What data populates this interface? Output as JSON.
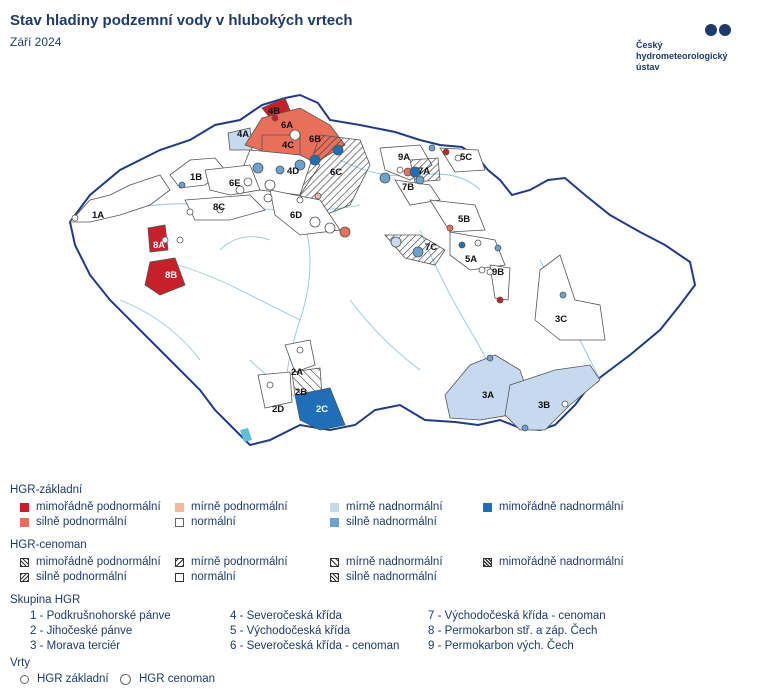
{
  "title": "Stav hladiny podzemní vody v hlubokých vrtech",
  "subtitle": "Září 2024",
  "logo": {
    "lines": [
      "Český",
      "hydrometeorologický",
      "ústav"
    ]
  },
  "colors": {
    "mimoradne_podnormalni": "#c8202a",
    "silne_podnormalni": "#e8705a",
    "mirne_podnormalni": "#f4b79c",
    "normalni": "#ffffff",
    "mirne_nadnormalni": "#c6d9ee",
    "silne_nadnormalni": "#6aa2d2",
    "mimoradne_nadnormalni": "#1f6fb8",
    "border": "#1f3b8c",
    "river": "#8ec8e6",
    "lake": "#5fbfd6"
  },
  "map_labels": [
    "1A",
    "1B",
    "2A",
    "2B",
    "2C",
    "2D",
    "3A",
    "3B",
    "3C",
    "4A",
    "4B",
    "4C",
    "4D",
    "5A",
    "5B",
    "5C",
    "6A",
    "6B",
    "6C",
    "6D",
    "6E",
    "7A",
    "7B",
    "7C",
    "8A",
    "8B",
    "8C",
    "9A",
    "9B"
  ],
  "legend": {
    "zakladni": {
      "heading": "HGR-základní",
      "items": [
        "mimořádně podnormální",
        "mírně podnormální",
        "mírně nadnormální",
        "mimořádně nadnormální",
        "silně podnormální",
        "normální",
        "silně nadnormální"
      ]
    },
    "cenoman": {
      "heading": "HGR-cenoman",
      "items": [
        "mimořádně podnormální",
        "mírně podnormální",
        "mírně nadnormální",
        "mimořádně nadnormální",
        "silně podnormální",
        "normální",
        "silně nadnormální"
      ]
    },
    "skupina": {
      "heading": "Skupina HGR",
      "items": [
        "1 - Podkrušnohorské pánve",
        "4 - Severočeská křída",
        "7 - Východočeská křída - cenoman",
        "2 - Jihočeské pánve",
        "5 - Východočeská křída",
        "8 - Permokarbon stř. a záp. Čech",
        "3 - Morava terciér",
        "6 - Severočeská křída - cenoman",
        "9 - Permokarbon vých. Čech"
      ]
    },
    "vrty": {
      "heading": "Vrty",
      "items": [
        "HGR základní",
        "HGR cenoman"
      ]
    }
  }
}
